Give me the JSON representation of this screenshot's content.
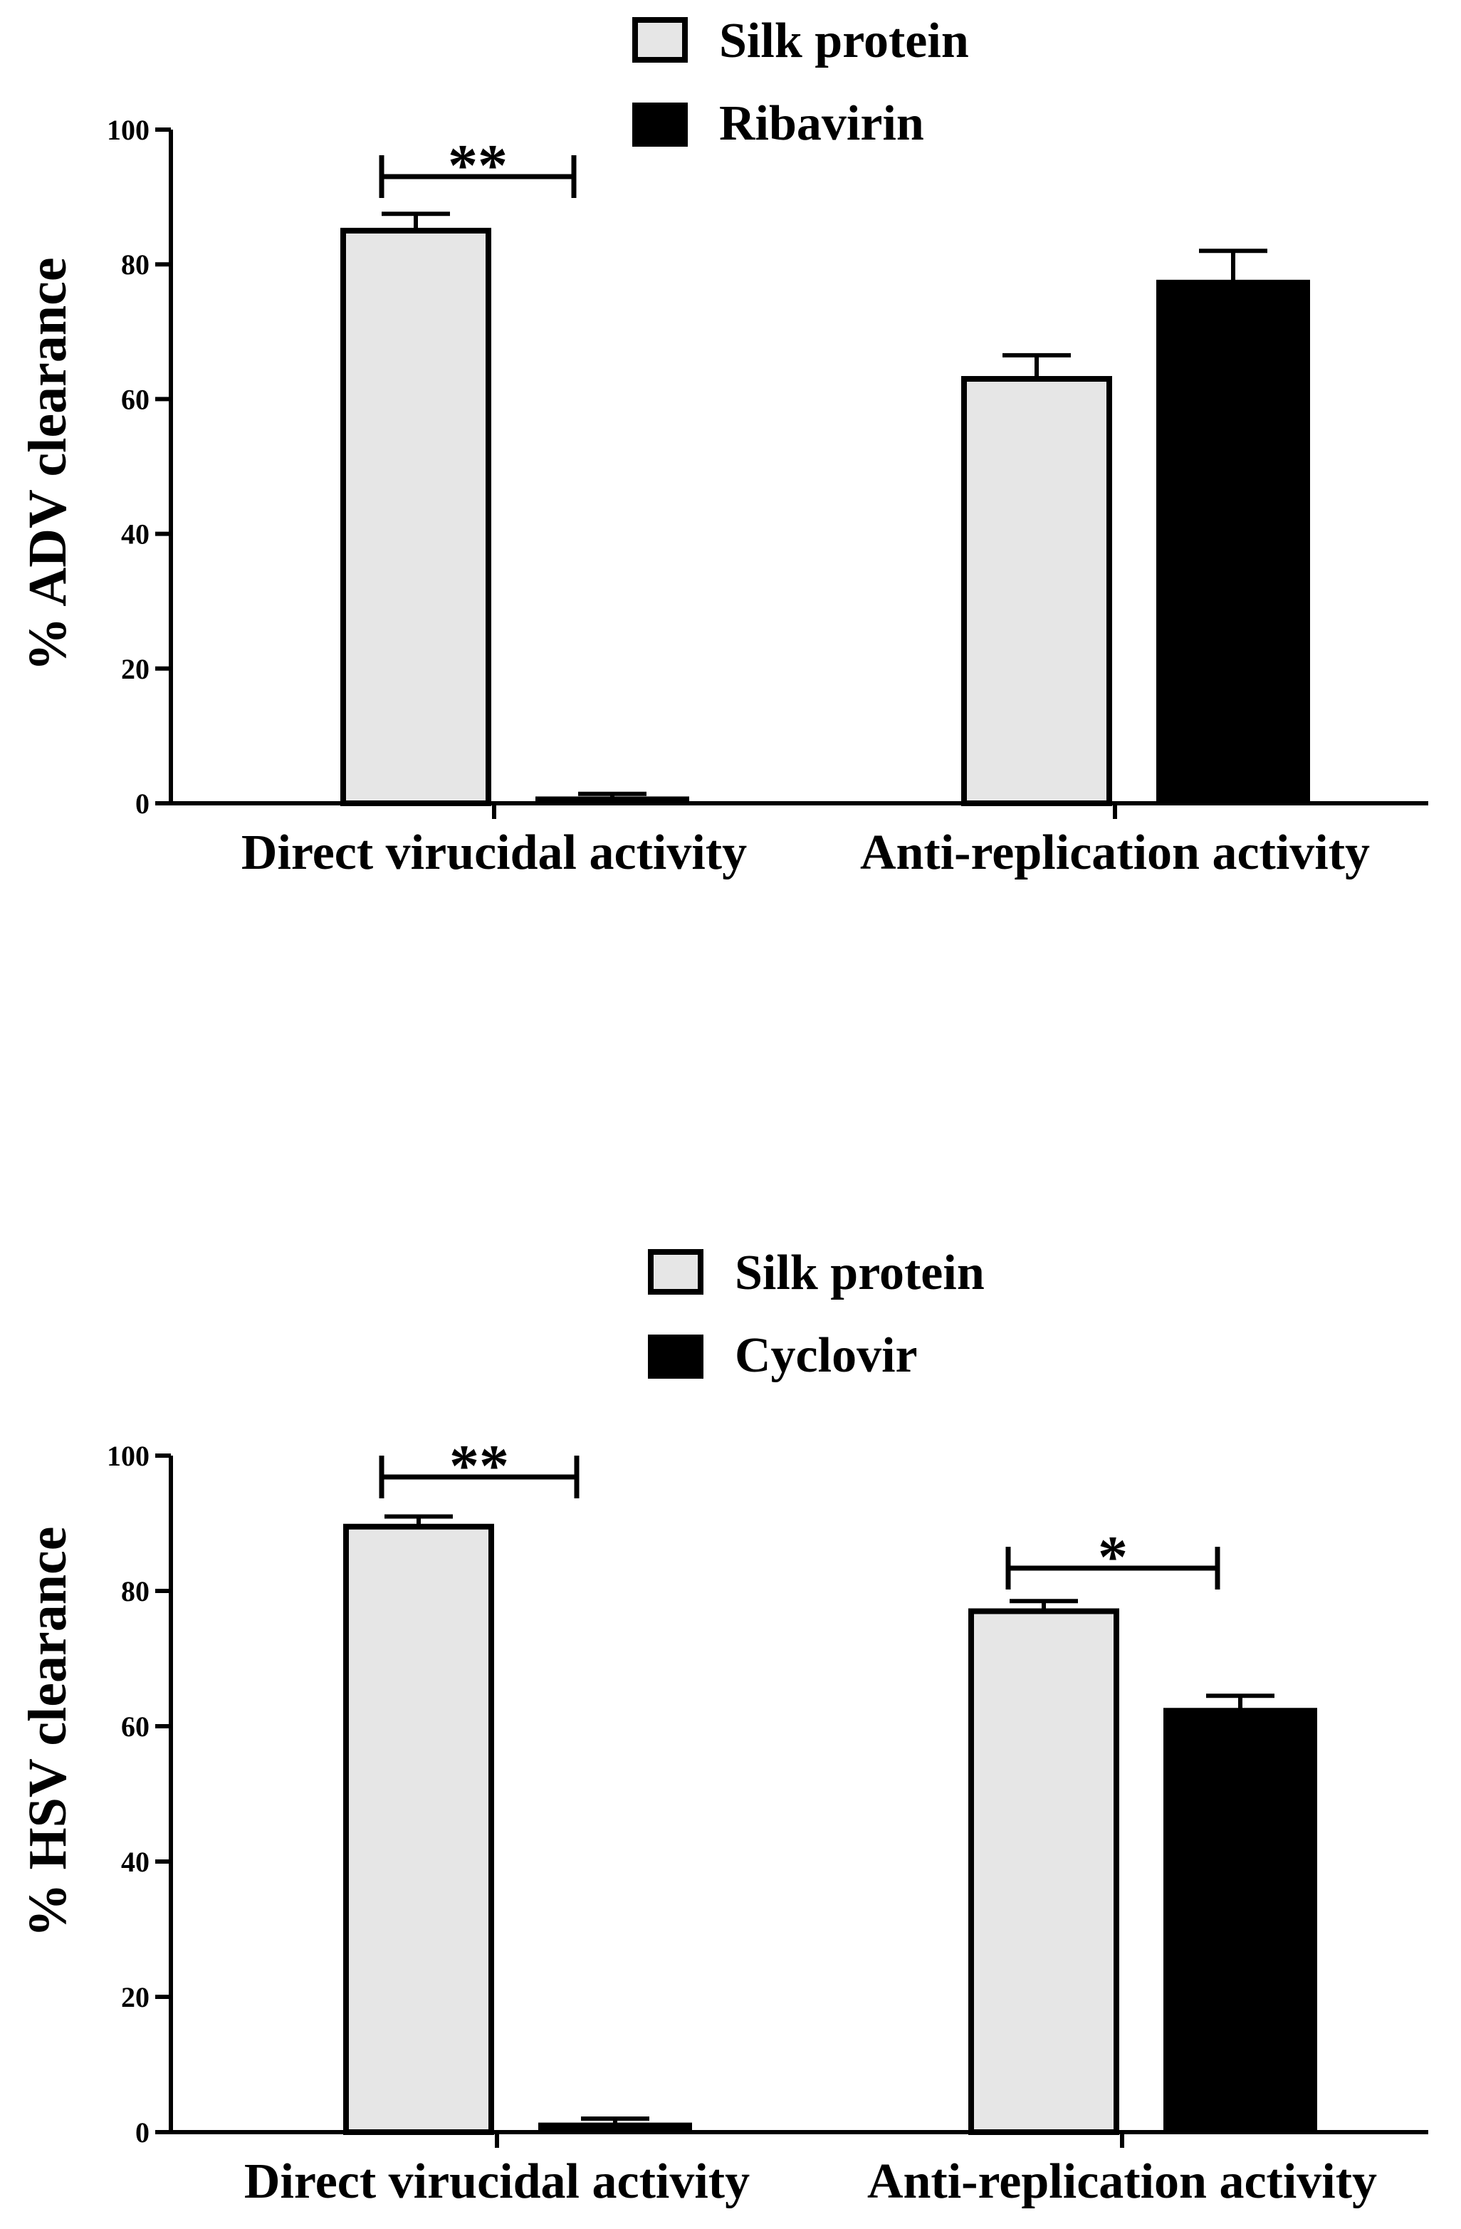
{
  "chart_data": [
    {
      "type": "bar",
      "title": "",
      "ylabel": "% ADV clearance",
      "xlabel": "",
      "ylim": [
        0,
        100
      ],
      "yticks": [
        0,
        20,
        40,
        60,
        80,
        100
      ],
      "categories": [
        "Direct virucidal activity",
        "Anti-replication activity"
      ],
      "series": [
        {
          "name": "Silk protein",
          "color": "#e6e6e6",
          "values": [
            85,
            63
          ],
          "errors": [
            2.5,
            3.5
          ]
        },
        {
          "name": "Ribavirin",
          "color": "#000000",
          "values": [
            0.8,
            77.5
          ],
          "errors": [
            0.6,
            4.5
          ]
        }
      ],
      "legend": {
        "position": "top-center",
        "entries": [
          "Silk protein",
          "Ribavirin"
        ]
      },
      "significance": [
        {
          "label": "**",
          "category_index": 0
        }
      ]
    },
    {
      "type": "bar",
      "title": "",
      "ylabel": "% HSV clearance",
      "xlabel": "",
      "ylim": [
        0,
        100
      ],
      "yticks": [
        0,
        20,
        40,
        60,
        80,
        100
      ],
      "categories": [
        "Direct virucidal activity",
        "Anti-replication activity"
      ],
      "series": [
        {
          "name": "Silk protein",
          "color": "#e6e6e6",
          "values": [
            89.5,
            77
          ],
          "errors": [
            1.5,
            1.5
          ]
        },
        {
          "name": "Cyclovir",
          "color": "#000000",
          "values": [
            1.2,
            62.5
          ],
          "errors": [
            0.8,
            2
          ]
        }
      ],
      "legend": {
        "position": "top-center",
        "entries": [
          "Silk protein",
          "Cyclovir"
        ]
      },
      "significance": [
        {
          "label": "**",
          "category_index": 0
        },
        {
          "label": "*",
          "category_index": 1
        }
      ]
    }
  ]
}
